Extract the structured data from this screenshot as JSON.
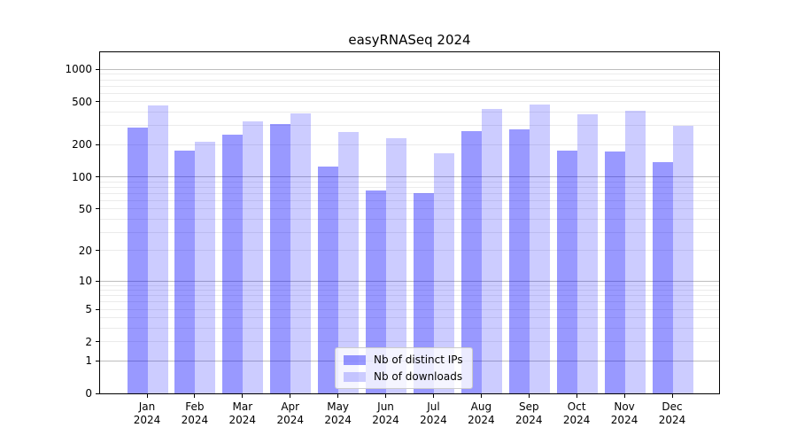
{
  "chart_data": {
    "type": "bar",
    "title": "easyRNASeq 2024",
    "categories": [
      "Jan",
      "Feb",
      "Mar",
      "Apr",
      "May",
      "Jun",
      "Jul",
      "Aug",
      "Sep",
      "Oct",
      "Nov",
      "Dec"
    ],
    "x_tick_second_line": "2024",
    "series": [
      {
        "name": "Nb of distinct IPs",
        "color": "rgba(0,0,255,0.4)",
        "values": [
          288,
          175,
          248,
          312,
          125,
          75,
          71,
          266,
          278,
          177,
          174,
          138
        ]
      },
      {
        "name": "Nb of downloads",
        "color": "rgba(0,0,255,0.2)",
        "values": [
          464,
          211,
          332,
          394,
          263,
          231,
          167,
          428,
          470,
          382,
          414,
          302
        ]
      }
    ],
    "y_axis": {
      "scale": "log10(value+1)",
      "ticks": [
        0,
        1,
        2,
        5,
        10,
        20,
        50,
        100,
        200,
        500,
        1000
      ],
      "range": [
        0,
        1440
      ]
    },
    "legend": {
      "position": "lower center",
      "entries": [
        "Nb of distinct IPs",
        "Nb of downloads"
      ]
    },
    "grid": {
      "orientation": "horizontal",
      "major_values": [
        1,
        10,
        100,
        1000
      ],
      "minor_rule": "2-9 per decade",
      "major_color": "#bdbdbd",
      "minor_color": "#ebebeb"
    },
    "colors": {
      "background": "#ffffff",
      "spine": "#000000",
      "text": "#000000"
    }
  }
}
